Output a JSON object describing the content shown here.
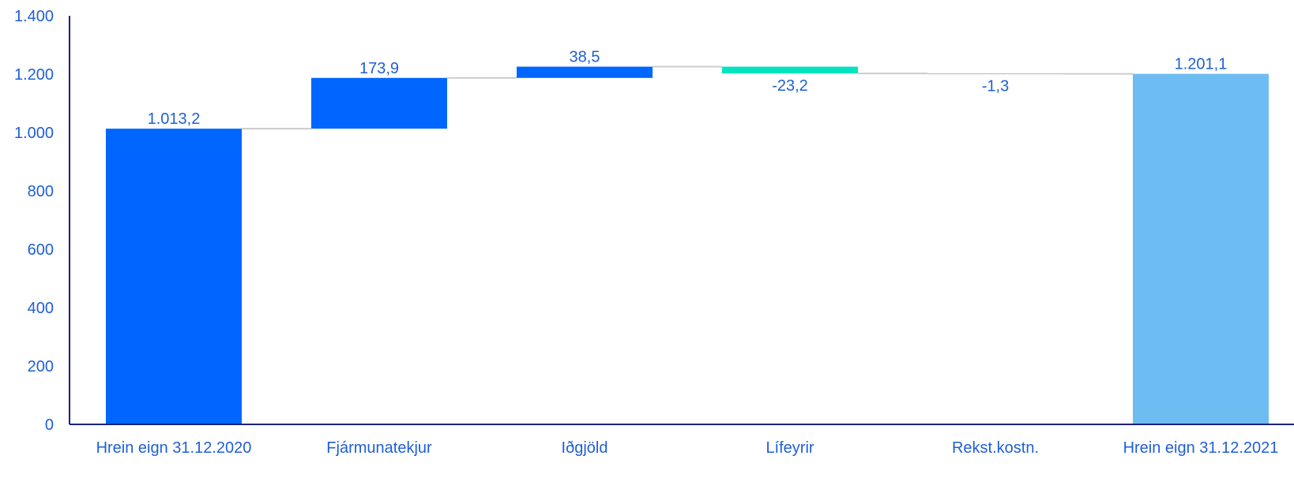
{
  "chart_data": {
    "type": "bar",
    "subtype": "waterfall",
    "categories": [
      "Hrein eign 31.12.2020",
      "Fjármunatekjur",
      "Iðgjöld",
      "Lífeyrir",
      "Rekst.kostn.",
      "Hrein eign 31.12.2021"
    ],
    "values": [
      1013.2,
      173.9,
      38.5,
      -23.2,
      -1.3,
      1201.1
    ],
    "kinds": [
      "total",
      "delta",
      "delta",
      "delta",
      "delta",
      "total"
    ],
    "data_labels": [
      "1.013,2",
      "173,9",
      "38,5",
      "-23,2",
      "-1,3",
      "1.201,1"
    ],
    "colors": [
      "#0066ff",
      "#0066ff",
      "#0066ff",
      "#00e5c0",
      "#b3b3b3",
      "#6dbdf2"
    ],
    "ylim": [
      0,
      1400
    ],
    "yticks": [
      0,
      200,
      400,
      600,
      800,
      1000,
      1200,
      1400
    ],
    "ytick_labels": [
      "0",
      "200",
      "400",
      "600",
      "800",
      "1.000",
      "1.200",
      "1.400"
    ],
    "grid": false,
    "connector_color": "#cccccc",
    "axis_color": "#1a237e",
    "text_color": "#1f5fd6"
  }
}
